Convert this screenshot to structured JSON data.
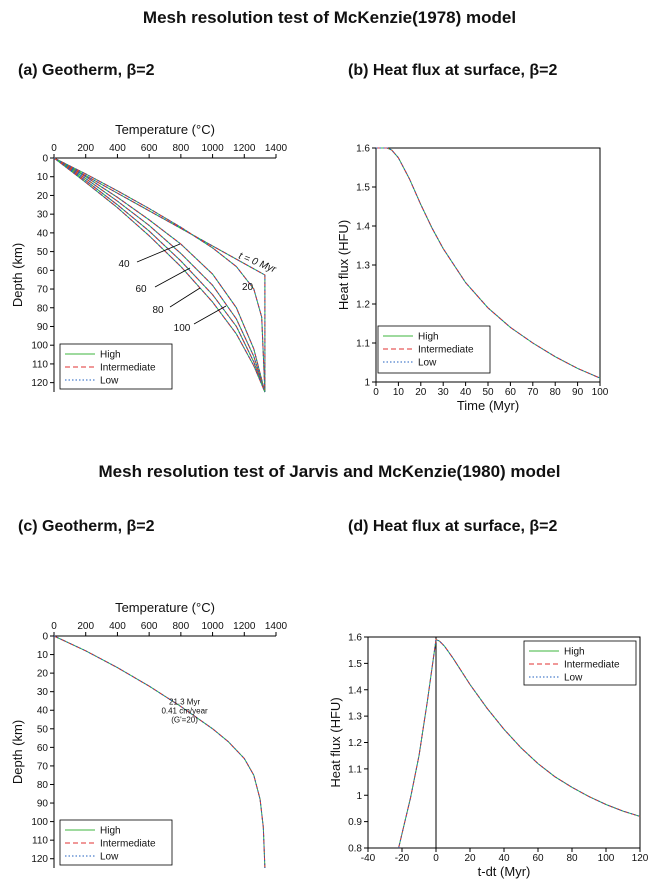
{
  "titles": {
    "top": "Mesh resolution test of McKenzie(1978) model",
    "bottom": "Mesh resolution test of Jarvis and McKenzie(1980) model"
  },
  "panels": {
    "a": "(a) Geotherm, β=2",
    "b": "(b) Heat flux at surface, β=2",
    "c": "(c) Geotherm, β=2",
    "d": "(d) Heat flux at surface, β=2"
  },
  "colors": {
    "high": "#3cb43c",
    "intermediate": "#e03030",
    "low": "#1f5fbf",
    "axis": "#000000"
  },
  "chart_data": [
    {
      "id": "a",
      "type": "line",
      "xlabel": "Temperature (°C)",
      "ylabel": "Depth (km)",
      "xlim": [
        0,
        1400
      ],
      "ylim": [
        0,
        125
      ],
      "x_axis_position": "top",
      "y_inverted": true,
      "xticks": [
        0,
        200,
        400,
        600,
        800,
        1000,
        1200,
        1400
      ],
      "yticks": [
        0,
        10,
        20,
        30,
        40,
        50,
        60,
        70,
        80,
        90,
        100,
        110,
        120
      ],
      "legend": {
        "placement": "bottom-left",
        "entries": [
          "High",
          "Intermediate",
          "Low"
        ]
      },
      "curves": [
        {
          "label": "t = 0 Myr",
          "points": [
            [
              0,
              0
            ],
            [
              1330,
              62.5
            ],
            [
              1330,
              125
            ]
          ]
        },
        {
          "label": "20",
          "points": [
            [
              0,
              0
            ],
            [
              200,
              8.5
            ],
            [
              400,
              17.5
            ],
            [
              600,
              27
            ],
            [
              800,
              37
            ],
            [
              1000,
              48
            ],
            [
              1150,
              58
            ],
            [
              1260,
              70
            ],
            [
              1310,
              85
            ],
            [
              1330,
              125
            ]
          ]
        },
        {
          "label": "40",
          "points": [
            [
              0,
              0
            ],
            [
              200,
              10
            ],
            [
              400,
              21
            ],
            [
              600,
              33
            ],
            [
              800,
              46
            ],
            [
              1000,
              62
            ],
            [
              1150,
              80
            ],
            [
              1260,
              102
            ],
            [
              1330,
              125
            ]
          ]
        },
        {
          "label": "60",
          "points": [
            [
              0,
              0
            ],
            [
              200,
              11
            ],
            [
              400,
              23
            ],
            [
              600,
              36
            ],
            [
              800,
              51
            ],
            [
              1000,
              68
            ],
            [
              1150,
              86
            ],
            [
              1260,
              106
            ],
            [
              1330,
              125
            ]
          ]
        },
        {
          "label": "80",
          "points": [
            [
              0,
              0
            ],
            [
              200,
              12
            ],
            [
              400,
              25
            ],
            [
              600,
              39
            ],
            [
              800,
              55
            ],
            [
              1000,
              73
            ],
            [
              1150,
              90
            ],
            [
              1260,
              109
            ],
            [
              1330,
              125
            ]
          ]
        },
        {
          "label": "100",
          "points": [
            [
              0,
              0
            ],
            [
              200,
              13
            ],
            [
              400,
              26.5
            ],
            [
              600,
              41.5
            ],
            [
              800,
              58
            ],
            [
              1000,
              77
            ],
            [
              1150,
              94
            ],
            [
              1260,
              111
            ],
            [
              1330,
              125
            ]
          ]
        }
      ]
    },
    {
      "id": "b",
      "type": "line",
      "xlabel": "Time (Myr)",
      "ylabel": "Heat flux (HFU)",
      "xlim": [
        0,
        100
      ],
      "ylim": [
        1,
        1.6
      ],
      "xticks": [
        0,
        10,
        20,
        30,
        40,
        50,
        60,
        70,
        80,
        90,
        100
      ],
      "yticks": [
        1,
        1.1,
        1.2,
        1.3,
        1.4,
        1.5,
        1.6
      ],
      "legend": {
        "placement": "bottom-left",
        "entries": [
          "High",
          "Intermediate",
          "Low"
        ]
      },
      "series": [
        {
          "name": "High",
          "x": [
            0,
            5,
            7,
            10,
            15,
            20,
            25,
            30,
            40,
            50,
            60,
            70,
            80,
            90,
            100
          ],
          "y": [
            1.6,
            1.6,
            1.595,
            1.575,
            1.52,
            1.455,
            1.395,
            1.342,
            1.255,
            1.19,
            1.14,
            1.1,
            1.065,
            1.035,
            1.01
          ]
        },
        {
          "name": "Intermediate",
          "x": [
            0,
            5,
            7,
            10,
            15,
            20,
            25,
            30,
            40,
            50,
            60,
            70,
            80,
            90,
            100
          ],
          "y": [
            1.6,
            1.6,
            1.595,
            1.575,
            1.52,
            1.455,
            1.395,
            1.342,
            1.255,
            1.19,
            1.14,
            1.1,
            1.065,
            1.035,
            1.01
          ]
        },
        {
          "name": "Low",
          "x": [
            0,
            5,
            7,
            10,
            15,
            20,
            25,
            30,
            40,
            50,
            60,
            70,
            80,
            90,
            100
          ],
          "y": [
            1.6,
            1.6,
            1.595,
            1.575,
            1.52,
            1.455,
            1.395,
            1.342,
            1.255,
            1.19,
            1.14,
            1.1,
            1.065,
            1.035,
            1.01
          ]
        }
      ]
    },
    {
      "id": "c",
      "type": "line",
      "xlabel": "Temperature (°C)",
      "ylabel": "Depth (km)",
      "xlim": [
        0,
        1400
      ],
      "ylim": [
        0,
        125
      ],
      "x_axis_position": "top",
      "y_inverted": true,
      "xticks": [
        0,
        200,
        400,
        600,
        800,
        1000,
        1200,
        1400
      ],
      "yticks": [
        0,
        10,
        20,
        30,
        40,
        50,
        60,
        70,
        80,
        90,
        100,
        110,
        120
      ],
      "legend": {
        "placement": "bottom-left",
        "entries": [
          "High",
          "Intermediate",
          "Low"
        ]
      },
      "annotation": {
        "lines": [
          "21.3 Myr",
          "0.41 cm/year",
          "(G'=20)"
        ],
        "x": 1000,
        "y": 37
      },
      "series": [
        {
          "name": "High",
          "x": [
            0,
            200,
            400,
            600,
            800,
            1000,
            1100,
            1200,
            1260,
            1300,
            1320,
            1330
          ],
          "y": [
            0,
            8,
            17,
            27,
            38,
            50,
            57,
            66,
            75,
            88,
            103,
            125
          ]
        },
        {
          "name": "Intermediate",
          "x": [
            0,
            200,
            400,
            600,
            800,
            1000,
            1100,
            1200,
            1260,
            1300,
            1320,
            1330
          ],
          "y": [
            0,
            8,
            17,
            27,
            38,
            50,
            57,
            66,
            75,
            88,
            103,
            125
          ]
        },
        {
          "name": "Low",
          "x": [
            0,
            200,
            400,
            600,
            800,
            1000,
            1100,
            1200,
            1260,
            1300,
            1320,
            1330
          ],
          "y": [
            0,
            8,
            17,
            27,
            38,
            50,
            57,
            66,
            75,
            88,
            103,
            125
          ]
        }
      ]
    },
    {
      "id": "d",
      "type": "line",
      "xlabel": "t-dt (Myr)",
      "ylabel": "Heat flux (HFU)",
      "xlim": [
        -40,
        120
      ],
      "ylim": [
        0.8,
        1.6
      ],
      "xticks": [
        -40,
        -20,
        0,
        20,
        40,
        60,
        80,
        100,
        120
      ],
      "yticks": [
        0.8,
        0.9,
        1,
        1.1,
        1.2,
        1.3,
        1.4,
        1.5,
        1.6
      ],
      "legend": {
        "placement": "top-right",
        "entries": [
          "High",
          "Intermediate",
          "Low"
        ]
      },
      "vline_x": 0,
      "series": [
        {
          "name": "High",
          "x": [
            -22,
            -15,
            -10,
            -5,
            0,
            2,
            5,
            10,
            20,
            30,
            40,
            50,
            60,
            70,
            80,
            90,
            100,
            110,
            120
          ],
          "y": [
            0.8,
            0.99,
            1.15,
            1.36,
            1.59,
            1.585,
            1.565,
            1.52,
            1.42,
            1.33,
            1.25,
            1.18,
            1.12,
            1.07,
            1.03,
            0.995,
            0.965,
            0.94,
            0.92
          ]
        },
        {
          "name": "Intermediate",
          "x": [
            -22,
            -15,
            -10,
            -5,
            0,
            2,
            5,
            10,
            20,
            30,
            40,
            50,
            60,
            70,
            80,
            90,
            100,
            110,
            120
          ],
          "y": [
            0.8,
            0.99,
            1.15,
            1.36,
            1.59,
            1.585,
            1.565,
            1.52,
            1.42,
            1.33,
            1.25,
            1.18,
            1.12,
            1.07,
            1.03,
            0.995,
            0.965,
            0.94,
            0.92
          ]
        },
        {
          "name": "Low",
          "x": [
            -22,
            -15,
            -10,
            -5,
            0,
            2,
            5,
            10,
            20,
            30,
            40,
            50,
            60,
            70,
            80,
            90,
            100,
            110,
            120
          ],
          "y": [
            0.8,
            0.99,
            1.15,
            1.36,
            1.59,
            1.585,
            1.565,
            1.52,
            1.42,
            1.33,
            1.25,
            1.18,
            1.12,
            1.07,
            1.03,
            0.995,
            0.965,
            0.94,
            0.92
          ]
        }
      ]
    }
  ]
}
